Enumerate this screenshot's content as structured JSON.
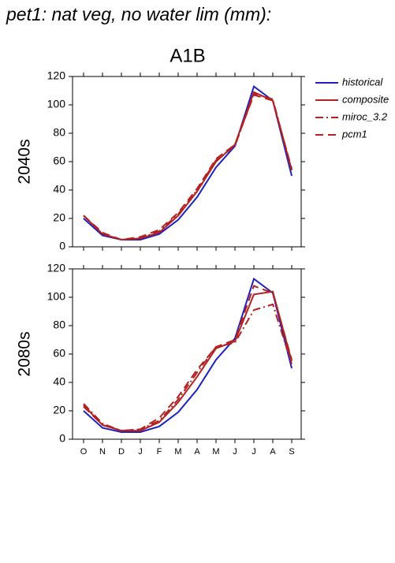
{
  "chart_data": [
    {
      "type": "line",
      "title": "pet1: nat veg, no water lim (mm):",
      "subtitle": "A1B",
      "ylabel": "2040s",
      "ylim": [
        0,
        120
      ],
      "yticks": [
        0,
        20,
        40,
        60,
        80,
        100,
        120
      ],
      "legend": "outside-right",
      "series": [
        {
          "name": "historical",
          "color": "#2020c0",
          "dash": "solid",
          "values": [
            20,
            8,
            5,
            5,
            9,
            19,
            35,
            56,
            71,
            113,
            103,
            50
          ]
        },
        {
          "name": "composite",
          "color": "#b22222",
          "dash": "solid",
          "values": [
            22,
            9,
            5,
            6,
            10,
            22,
            39,
            60,
            72,
            109,
            103,
            54
          ]
        },
        {
          "name": "miroc_3.2",
          "color": "#b22222",
          "dash": "dashdot",
          "values": [
            22,
            9,
            5,
            6,
            11,
            23,
            40,
            61,
            71,
            108,
            104,
            54
          ]
        },
        {
          "name": "pcm1",
          "color": "#b22222",
          "dash": "dashed",
          "values": [
            22,
            10,
            5,
            7,
            12,
            24,
            41,
            62,
            72,
            107,
            103,
            55
          ]
        }
      ]
    },
    {
      "type": "line",
      "ylabel": "2080s",
      "categories": [
        "O",
        "N",
        "D",
        "J",
        "F",
        "M",
        "A",
        "M",
        "J",
        "J",
        "A",
        "S"
      ],
      "ylim": [
        0,
        120
      ],
      "yticks": [
        0,
        20,
        40,
        60,
        80,
        100,
        120
      ],
      "series": [
        {
          "color": "#2020c0",
          "dash": "solid",
          "values": [
            20,
            8,
            5,
            5,
            9,
            19,
            35,
            56,
            71,
            113,
            103,
            50
          ]
        },
        {
          "color": "#b22222",
          "dash": "solid",
          "values": [
            24,
            10,
            6,
            6,
            12,
            26,
            44,
            64,
            69,
            102,
            104,
            55
          ]
        },
        {
          "color": "#b22222",
          "dash": "dashdot",
          "values": [
            25,
            11,
            6,
            7,
            13,
            28,
            47,
            65,
            68,
            91,
            95,
            53
          ]
        },
        {
          "color": "#b22222",
          "dash": "dashed",
          "values": [
            23,
            10,
            6,
            7,
            15,
            30,
            49,
            65,
            70,
            108,
            103,
            56
          ]
        }
      ]
    }
  ]
}
